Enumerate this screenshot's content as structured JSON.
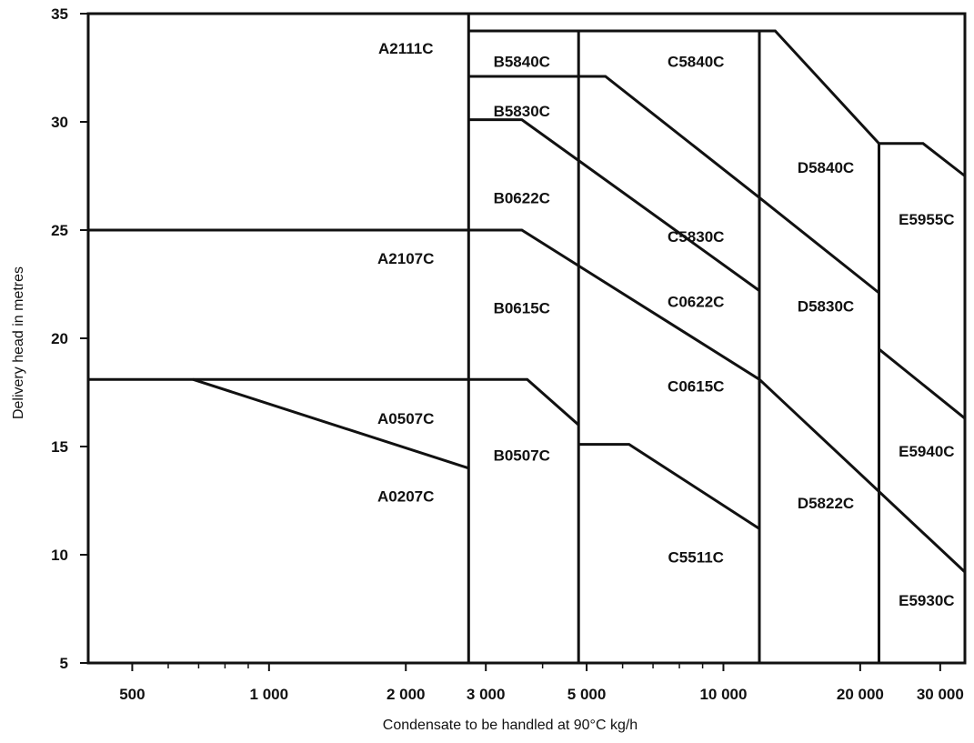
{
  "chart_data": {
    "type": "line",
    "title": "",
    "xlabel": "Condensate to be handled at 90°C kg/h",
    "ylabel": "Delivery head in metres",
    "x_scale": "log",
    "xlim": [
      400,
      34000
    ],
    "ylim": [
      5,
      35
    ],
    "x_ticks": [
      {
        "value": 500,
        "label": "500"
      },
      {
        "value": 1000,
        "label": "1 000"
      },
      {
        "value": 2000,
        "label": "2 000"
      },
      {
        "value": 3000,
        "label": "3 000"
      },
      {
        "value": 5000,
        "label": "5 000"
      },
      {
        "value": 10000,
        "label": "10 000"
      },
      {
        "value": 20000,
        "label": "20 000"
      },
      {
        "value": 30000,
        "label": "30 000"
      }
    ],
    "x_minor_ticks": [
      600,
      700,
      800,
      900,
      4000,
      6000,
      7000,
      8000,
      9000,
      40000
    ],
    "y_ticks": [
      {
        "value": 5,
        "label": "5"
      },
      {
        "value": 10,
        "label": "10"
      },
      {
        "value": 15,
        "label": "15"
      },
      {
        "value": 20,
        "label": "20"
      },
      {
        "value": 25,
        "label": "25"
      },
      {
        "value": 30,
        "label": "30"
      },
      {
        "value": 35,
        "label": "35"
      }
    ],
    "boundaries": [
      {
        "name": "v-2800",
        "points": [
          [
            2750,
            5
          ],
          [
            2750,
            35
          ]
        ]
      },
      {
        "name": "v-4800",
        "points": [
          [
            4800,
            5
          ],
          [
            4800,
            34.2
          ]
        ]
      },
      {
        "name": "v-12000",
        "points": [
          [
            12000,
            5
          ],
          [
            12000,
            34.2
          ]
        ]
      },
      {
        "name": "v-22000",
        "points": [
          [
            22000,
            5
          ],
          [
            22000,
            29
          ]
        ]
      },
      {
        "name": "top-34",
        "points": [
          [
            2750,
            34.2
          ],
          [
            13000,
            34.2
          ],
          [
            22000,
            29
          ],
          [
            27500,
            29
          ],
          [
            34000,
            27.5
          ]
        ]
      },
      {
        "name": "top-32",
        "points": [
          [
            2750,
            32.1
          ],
          [
            5500,
            32.1
          ],
          [
            12000,
            26.5
          ],
          [
            22000,
            22.1
          ]
        ]
      },
      {
        "name": "top-30",
        "points": [
          [
            2750,
            30.1
          ],
          [
            3600,
            30.1
          ],
          [
            12000,
            22.2
          ]
        ]
      },
      {
        "name": "top-25",
        "points": [
          [
            400,
            25
          ],
          [
            3600,
            25
          ],
          [
            12000,
            18.1
          ],
          [
            34000,
            9.2
          ]
        ]
      },
      {
        "name": "top-18",
        "points": [
          [
            400,
            18.1
          ],
          [
            3700,
            18.1
          ],
          [
            4800,
            16
          ]
        ]
      },
      {
        "name": "diag-a0207",
        "points": [
          [
            680,
            18.1
          ],
          [
            2750,
            14
          ]
        ]
      },
      {
        "name": "top-15",
        "points": [
          [
            4800,
            15.1
          ],
          [
            6200,
            15.1
          ],
          [
            12000,
            11.2
          ]
        ]
      },
      {
        "name": "e5940",
        "points": [
          [
            22000,
            19.5
          ],
          [
            34000,
            16.3
          ]
        ]
      }
    ],
    "regions": [
      {
        "label": "A2111C",
        "x": 2000,
        "y": 33.4
      },
      {
        "label": "A2107C",
        "x": 2000,
        "y": 23.7
      },
      {
        "label": "A0507C",
        "x": 2000,
        "y": 16.3
      },
      {
        "label": "A0207C",
        "x": 2000,
        "y": 12.7
      },
      {
        "label": "B5840C",
        "x": 3600,
        "y": 32.8
      },
      {
        "label": "B5830C",
        "x": 3600,
        "y": 30.5
      },
      {
        "label": "B0622C",
        "x": 3600,
        "y": 26.5
      },
      {
        "label": "B0615C",
        "x": 3600,
        "y": 21.4
      },
      {
        "label": "B0507C",
        "x": 3600,
        "y": 14.6
      },
      {
        "label": "C5840C",
        "x": 8700,
        "y": 32.8
      },
      {
        "label": "C5830C",
        "x": 8700,
        "y": 24.7
      },
      {
        "label": "C0622C",
        "x": 8700,
        "y": 21.7
      },
      {
        "label": "C0615C",
        "x": 8700,
        "y": 17.8
      },
      {
        "label": "C5511C",
        "x": 8700,
        "y": 9.9
      },
      {
        "label": "D5840C",
        "x": 16800,
        "y": 27.9
      },
      {
        "label": "D5830C",
        "x": 16800,
        "y": 21.5
      },
      {
        "label": "D5822C",
        "x": 16800,
        "y": 12.4
      },
      {
        "label": "E5955C",
        "x": 28000,
        "y": 25.5
      },
      {
        "label": "E5940C",
        "x": 28000,
        "y": 14.8
      },
      {
        "label": "E5930C",
        "x": 28000,
        "y": 7.9
      }
    ]
  }
}
